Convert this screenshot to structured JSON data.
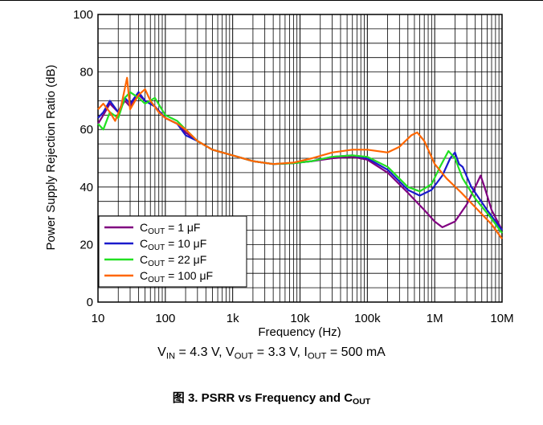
{
  "chart_data": {
    "type": "line",
    "xscale": "log",
    "xlim": [
      10,
      10000000
    ],
    "ylim": [
      0,
      100
    ],
    "xlabel": "Frequency (Hz)",
    "ylabel": "Power Supply Rejection Ratio (dB)",
    "x_ticks": [
      "10",
      "100",
      "1k",
      "10k",
      "100k",
      "1M",
      "10M"
    ],
    "y_ticks": [
      "0",
      "20",
      "40",
      "60",
      "80",
      "100"
    ],
    "grid": true,
    "legend_position": "bottom-left",
    "series": [
      {
        "name": "C_OUT = 1 μF",
        "legend": {
          "pre": "C",
          "sub": "OUT",
          "post": " = 1 μF"
        },
        "color": "#800080",
        "points": [
          [
            10,
            62
          ],
          [
            12,
            65
          ],
          [
            15,
            69
          ],
          [
            20,
            66
          ],
          [
            25,
            70
          ],
          [
            30,
            68
          ],
          [
            40,
            72
          ],
          [
            50,
            70
          ],
          [
            70,
            68
          ],
          [
            100,
            64
          ],
          [
            150,
            62
          ],
          [
            200,
            59
          ],
          [
            300,
            56
          ],
          [
            500,
            53
          ],
          [
            1000,
            51
          ],
          [
            2000,
            49
          ],
          [
            4000,
            48
          ],
          [
            8000,
            48.3
          ],
          [
            15000,
            49
          ],
          [
            30000,
            50
          ],
          [
            60000,
            50.5
          ],
          [
            100000,
            49.5
          ],
          [
            200000,
            45
          ],
          [
            400000,
            38
          ],
          [
            700000,
            32
          ],
          [
            1000000,
            28
          ],
          [
            1300000,
            26
          ],
          [
            2000000,
            28
          ],
          [
            3000000,
            34
          ],
          [
            4000000,
            40
          ],
          [
            4800000,
            44
          ],
          [
            5500000,
            40
          ],
          [
            7000000,
            32
          ],
          [
            10000000,
            25
          ]
        ]
      },
      {
        "name": "C_OUT = 10 μF",
        "legend": {
          "pre": "C",
          "sub": "OUT",
          "post": " = 10 μF"
        },
        "color": "#1a1acc",
        "points": [
          [
            10,
            64
          ],
          [
            12,
            66
          ],
          [
            15,
            70
          ],
          [
            20,
            66
          ],
          [
            25,
            71
          ],
          [
            30,
            69
          ],
          [
            40,
            73
          ],
          [
            50,
            70
          ],
          [
            70,
            68
          ],
          [
            100,
            64
          ],
          [
            150,
            62
          ],
          [
            200,
            58
          ],
          [
            300,
            56
          ],
          [
            500,
            53
          ],
          [
            1000,
            51
          ],
          [
            2000,
            49
          ],
          [
            4000,
            48
          ],
          [
            8000,
            48.3
          ],
          [
            15000,
            49
          ],
          [
            30000,
            50.5
          ],
          [
            60000,
            51
          ],
          [
            100000,
            50
          ],
          [
            200000,
            46
          ],
          [
            400000,
            39
          ],
          [
            600000,
            37
          ],
          [
            900000,
            39
          ],
          [
            1300000,
            44
          ],
          [
            1700000,
            50
          ],
          [
            2000000,
            52
          ],
          [
            2300000,
            48
          ],
          [
            2600000,
            47
          ],
          [
            3500000,
            40
          ],
          [
            6000000,
            32
          ],
          [
            10000000,
            25
          ]
        ]
      },
      {
        "name": "C_OUT = 22 μF",
        "legend": {
          "pre": "C",
          "sub": "OUT",
          "post": " = 22 μF"
        },
        "color": "#22e022",
        "points": [
          [
            10,
            62
          ],
          [
            12,
            60
          ],
          [
            15,
            66
          ],
          [
            20,
            64
          ],
          [
            25,
            71
          ],
          [
            30,
            73
          ],
          [
            40,
            71
          ],
          [
            50,
            69
          ],
          [
            70,
            71
          ],
          [
            100,
            65
          ],
          [
            150,
            63
          ],
          [
            200,
            60
          ],
          [
            300,
            56
          ],
          [
            500,
            53
          ],
          [
            1000,
            51
          ],
          [
            2000,
            49
          ],
          [
            4000,
            48
          ],
          [
            8000,
            48.3
          ],
          [
            15000,
            49
          ],
          [
            30000,
            50.5
          ],
          [
            60000,
            51
          ],
          [
            100000,
            50.5
          ],
          [
            200000,
            47
          ],
          [
            400000,
            40
          ],
          [
            600000,
            38.5
          ],
          [
            900000,
            41
          ],
          [
            1200000,
            47
          ],
          [
            1600000,
            52.5
          ],
          [
            2000000,
            50
          ],
          [
            2600000,
            43
          ],
          [
            4000000,
            36
          ],
          [
            7000000,
            29
          ],
          [
            10000000,
            24
          ]
        ]
      },
      {
        "name": "C_OUT = 100 μF",
        "legend": {
          "pre": "C",
          "sub": "OUT",
          "post": " = 100 μF"
        },
        "color": "#ff6600",
        "points": [
          [
            10,
            67
          ],
          [
            12,
            69
          ],
          [
            15,
            66
          ],
          [
            18,
            63
          ],
          [
            22,
            68
          ],
          [
            27,
            78
          ],
          [
            30,
            67
          ],
          [
            40,
            72
          ],
          [
            50,
            74
          ],
          [
            60,
            70
          ],
          [
            80,
            66
          ],
          [
            100,
            64
          ],
          [
            150,
            62
          ],
          [
            200,
            60
          ],
          [
            300,
            56
          ],
          [
            500,
            53
          ],
          [
            1000,
            51
          ],
          [
            2000,
            49
          ],
          [
            4000,
            48
          ],
          [
            8000,
            48.5
          ],
          [
            15000,
            50
          ],
          [
            30000,
            52
          ],
          [
            60000,
            53
          ],
          [
            100000,
            53
          ],
          [
            200000,
            52
          ],
          [
            300000,
            54
          ],
          [
            450000,
            58
          ],
          [
            550000,
            59
          ],
          [
            700000,
            56
          ],
          [
            1000000,
            48
          ],
          [
            1500000,
            43
          ],
          [
            2500000,
            38
          ],
          [
            4000000,
            33
          ],
          [
            7000000,
            27
          ],
          [
            10000000,
            22
          ]
        ]
      }
    ]
  },
  "conditions": {
    "vin_pre": "V",
    "vin_sub": "IN",
    "vin_val": " = 4.3 V, ",
    "vout_pre": "V",
    "vout_sub": "OUT",
    "vout_val": " = 3.3 V, ",
    "iout_pre": "I",
    "iout_sub": "OUT",
    "iout_val": " = 500 mA"
  },
  "caption": {
    "prefix": "图 3. PSRR vs Frequency and C",
    "sub": "OUT"
  }
}
